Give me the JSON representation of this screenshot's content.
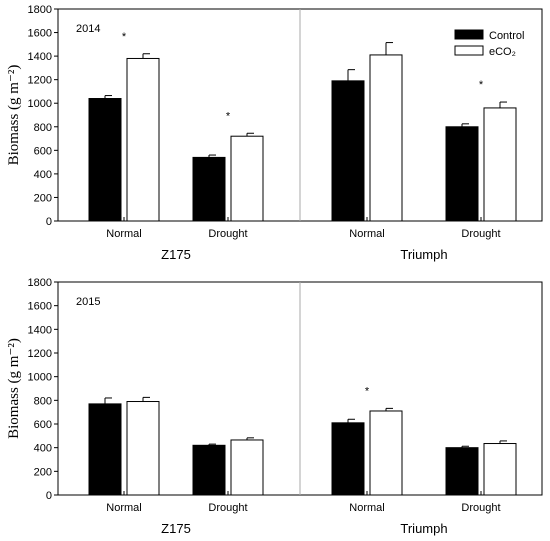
{
  "chart_data": [
    {
      "type": "bar",
      "year_label": "2014",
      "ylabel": "Biomass (g m⁻²)",
      "ylim": [
        0,
        1800
      ],
      "yticks": [
        "0",
        "200",
        "400",
        "600",
        "800",
        "1000",
        "1200",
        "1400",
        "1600",
        "1800"
      ],
      "groups": [
        {
          "name": "Z175",
          "categories": [
            "Normal",
            "Drought"
          ]
        },
        {
          "name": "Triumph",
          "categories": [
            "Normal",
            "Drought"
          ]
        }
      ],
      "categories": [
        "Normal",
        "Drought",
        "Normal",
        "Drought"
      ],
      "series": [
        {
          "name": "Control",
          "color": "#000000",
          "values": [
            1040,
            540,
            1190,
            800
          ],
          "errors": [
            25,
            20,
            95,
            25
          ]
        },
        {
          "name": "eCO₂",
          "color": "#ffffff",
          "values": [
            1380,
            720,
            1410,
            960
          ],
          "errors": [
            40,
            25,
            105,
            50
          ]
        }
      ],
      "significance": [
        "*",
        "*",
        "",
        "*"
      ],
      "legend": {
        "position": "top-right",
        "entries": [
          "Control",
          "eCO₂"
        ]
      },
      "grid": false
    },
    {
      "type": "bar",
      "year_label": "2015",
      "ylabel": "Biomass (g m⁻²)",
      "ylim": [
        0,
        1800
      ],
      "yticks": [
        "0",
        "200",
        "400",
        "600",
        "800",
        "1000",
        "1200",
        "1400",
        "1600",
        "1800"
      ],
      "groups": [
        {
          "name": "Z175",
          "categories": [
            "Normal",
            "Drought"
          ]
        },
        {
          "name": "Triumph",
          "categories": [
            "Normal",
            "Drought"
          ]
        }
      ],
      "categories": [
        "Normal",
        "Drought",
        "Normal",
        "Drought"
      ],
      "series": [
        {
          "name": "Control",
          "color": "#000000",
          "values": [
            770,
            420,
            610,
            400
          ],
          "errors": [
            50,
            10,
            30,
            12
          ]
        },
        {
          "name": "eCO₂",
          "color": "#ffffff",
          "values": [
            790,
            465,
            710,
            435
          ],
          "errors": [
            35,
            18,
            22,
            22
          ]
        }
      ],
      "significance": [
        "",
        "",
        "*",
        ""
      ],
      "legend": null,
      "grid": false
    }
  ]
}
